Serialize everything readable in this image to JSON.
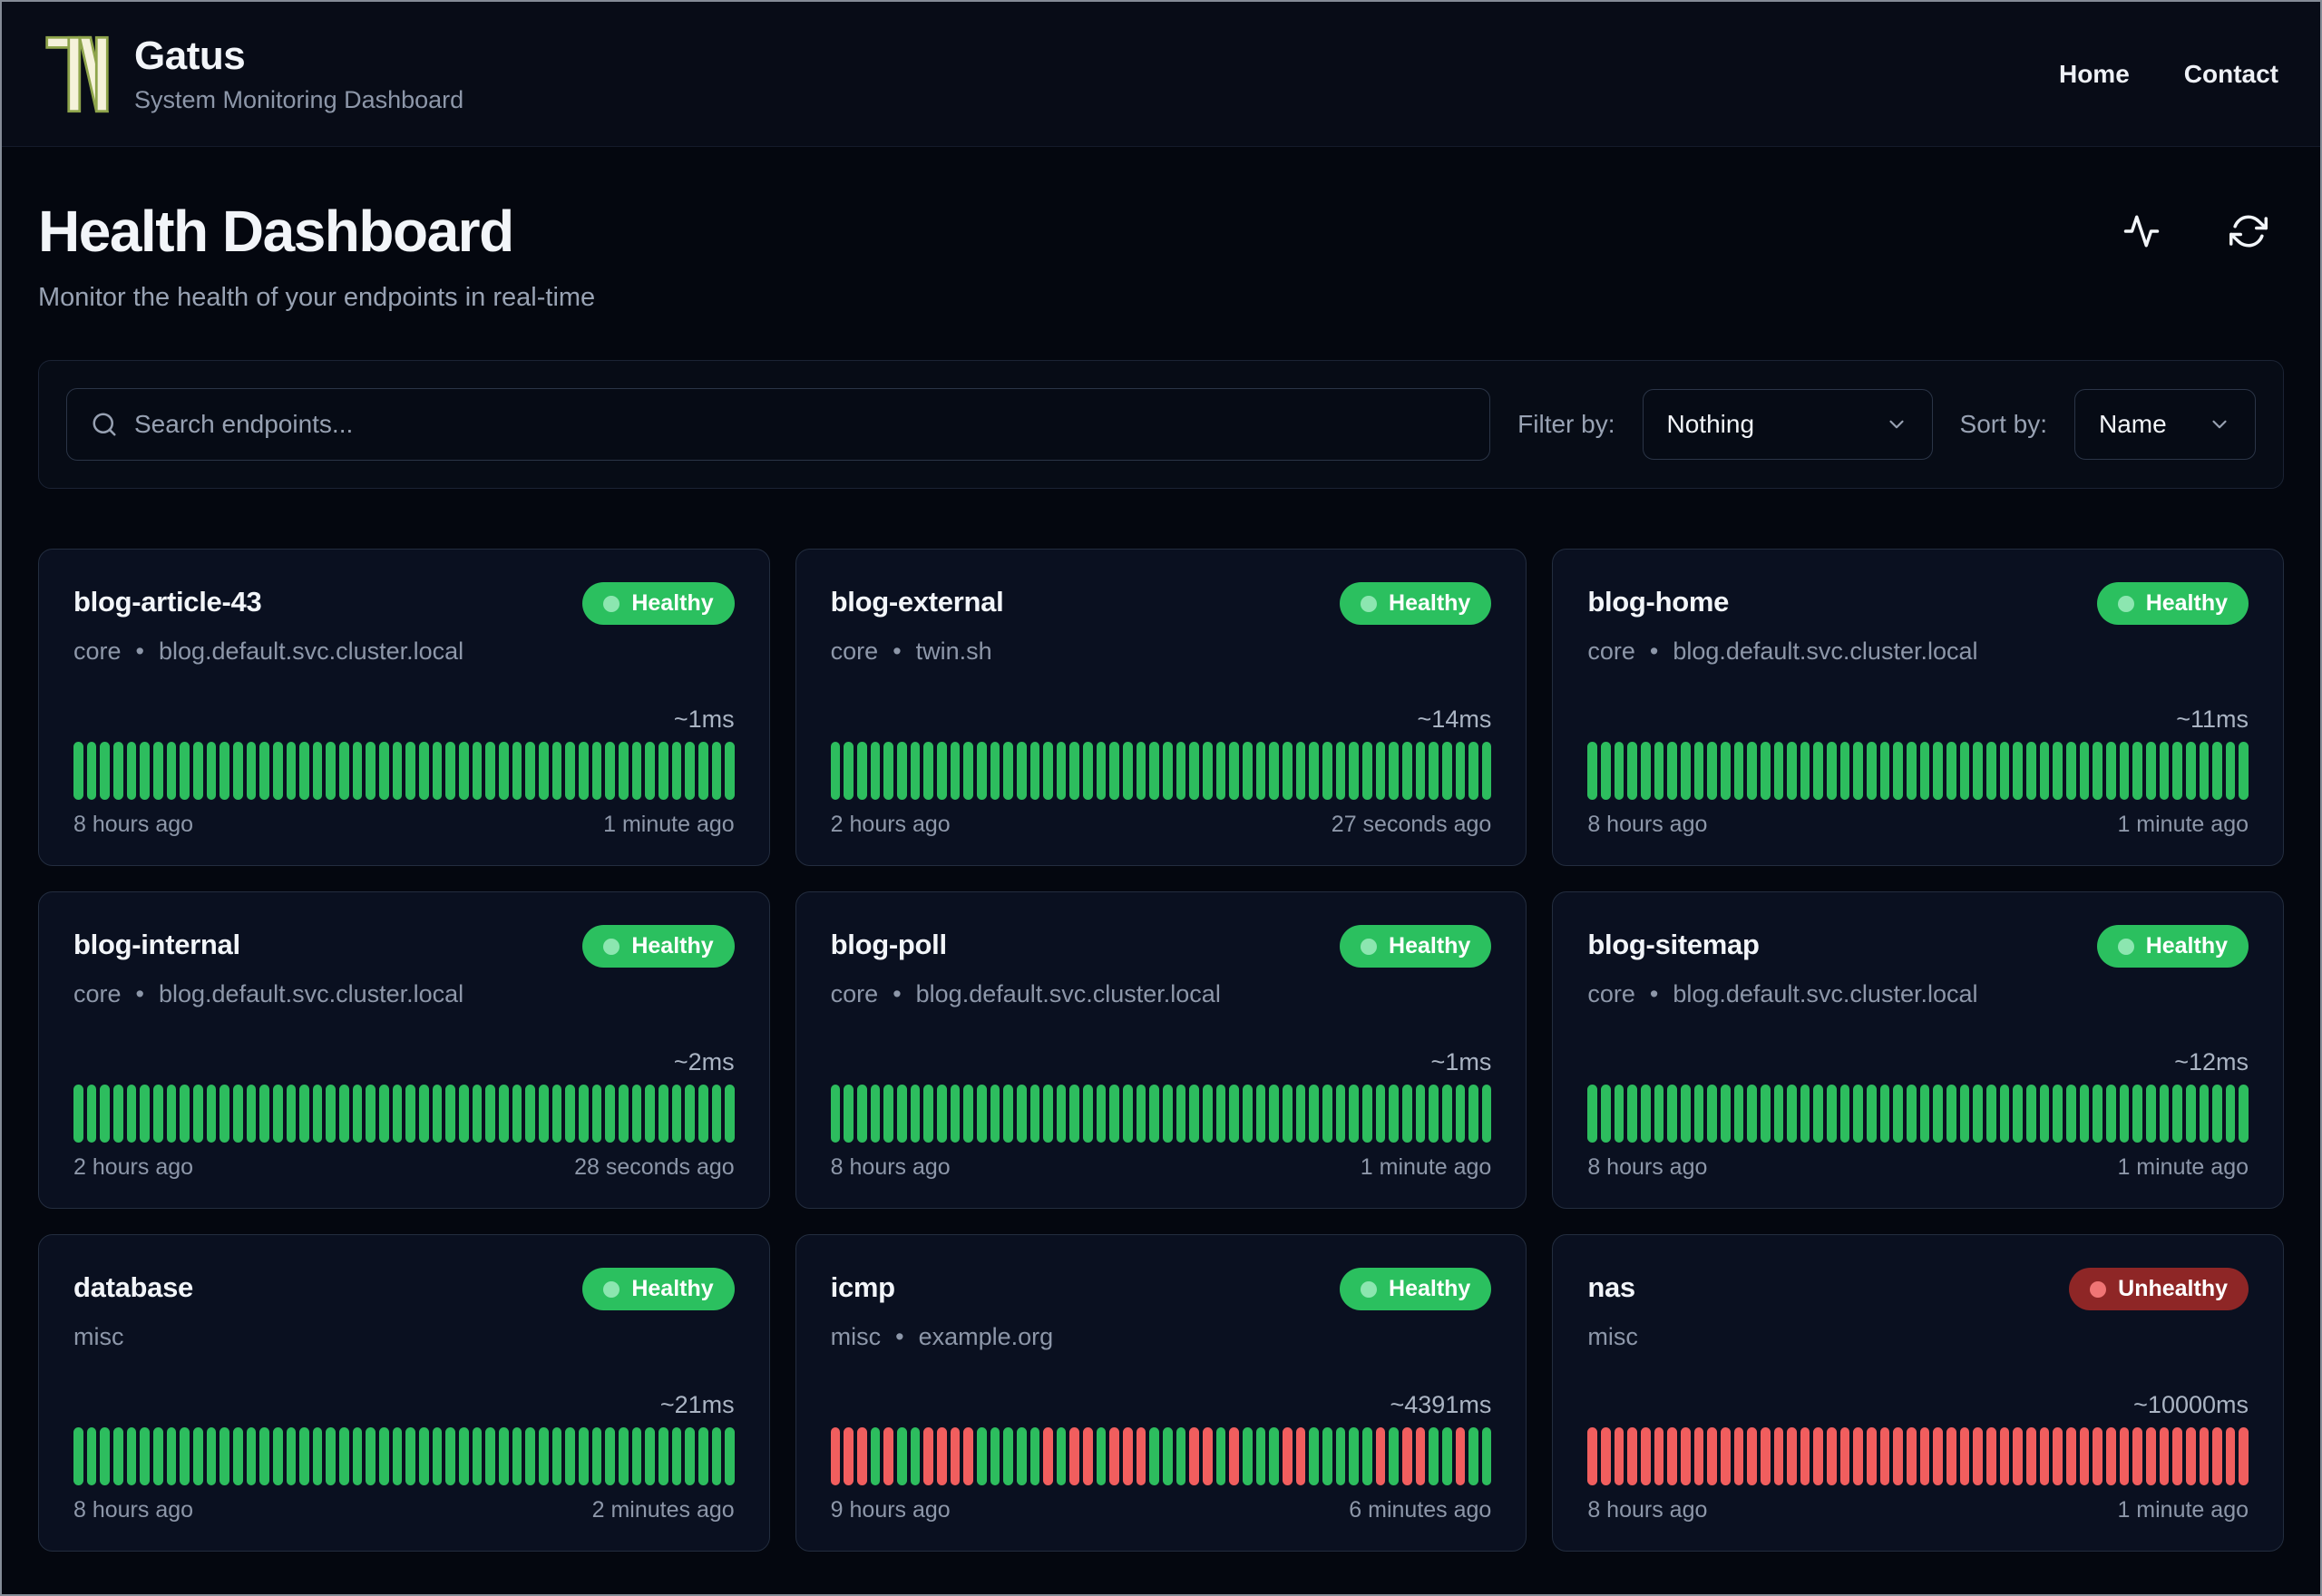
{
  "header": {
    "brand": "Gatus",
    "tagline": "System Monitoring Dashboard",
    "nav": [
      {
        "label": "Home"
      },
      {
        "label": "Contact"
      }
    ]
  },
  "page": {
    "title": "Health Dashboard",
    "subtitle": "Monitor the health of your endpoints in real-time"
  },
  "toolbar": {
    "search_placeholder": "Search endpoints...",
    "filter_label": "Filter by:",
    "filter_value": "Nothing",
    "sort_label": "Sort by:",
    "sort_value": "Name"
  },
  "ui": {
    "separator": "•",
    "icons": [
      "tn-logo-icon",
      "activity-icon",
      "refresh-icon",
      "search-icon",
      "chevron-down-icon"
    ],
    "colors": {
      "healthy_badge": "#2bc05f",
      "healthy_bar": "#2dbd5e",
      "unhealthy_badge": "#8e2626",
      "unhealthy_bar": "#f15e5e",
      "background": "#04070f",
      "card_background": "#0a1020",
      "logo_green": "#8ea44b"
    }
  },
  "cards": [
    {
      "name": "blog-article-43",
      "group": "core",
      "host": "blog.default.svc.cluster.local",
      "status": "healthy",
      "status_label": "Healthy",
      "latency": "~1ms",
      "start_label": "8 hours ago",
      "end_label": "1 minute ago",
      "bars": "GGGGGGGGGGGGGGGGGGGGGGGGGGGGGGGGGGGGGGGGGGGGGGGGGG"
    },
    {
      "name": "blog-external",
      "group": "core",
      "host": "twin.sh",
      "status": "healthy",
      "status_label": "Healthy",
      "latency": "~14ms",
      "start_label": "2 hours ago",
      "end_label": "27 seconds ago",
      "bars": "GGGGGGGGGGGGGGGGGGGGGGGGGGGGGGGGGGGGGGGGGGGGGGGGGG"
    },
    {
      "name": "blog-home",
      "group": "core",
      "host": "blog.default.svc.cluster.local",
      "status": "healthy",
      "status_label": "Healthy",
      "latency": "~11ms",
      "start_label": "8 hours ago",
      "end_label": "1 minute ago",
      "bars": "GGGGGGGGGGGGGGGGGGGGGGGGGGGGGGGGGGGGGGGGGGGGGGGGGG"
    },
    {
      "name": "blog-internal",
      "group": "core",
      "host": "blog.default.svc.cluster.local",
      "status": "healthy",
      "status_label": "Healthy",
      "latency": "~2ms",
      "start_label": "2 hours ago",
      "end_label": "28 seconds ago",
      "bars": "GGGGGGGGGGGGGGGGGGGGGGGGGGGGGGGGGGGGGGGGGGGGGGGGGG"
    },
    {
      "name": "blog-poll",
      "group": "core",
      "host": "blog.default.svc.cluster.local",
      "status": "healthy",
      "status_label": "Healthy",
      "latency": "~1ms",
      "start_label": "8 hours ago",
      "end_label": "1 minute ago",
      "bars": "GGGGGGGGGGGGGGGGGGGGGGGGGGGGGGGGGGGGGGGGGGGGGGGGGG"
    },
    {
      "name": "blog-sitemap",
      "group": "core",
      "host": "blog.default.svc.cluster.local",
      "status": "healthy",
      "status_label": "Healthy",
      "latency": "~12ms",
      "start_label": "8 hours ago",
      "end_label": "1 minute ago",
      "bars": "GGGGGGGGGGGGGGGGGGGGGGGGGGGGGGGGGGGGGGGGGGGGGGGGGG"
    },
    {
      "name": "database",
      "group": "misc",
      "host": "",
      "status": "healthy",
      "status_label": "Healthy",
      "latency": "~21ms",
      "start_label": "8 hours ago",
      "end_label": "2 minutes ago",
      "bars": "GGGGGGGGGGGGGGGGGGGGGGGGGGGGGGGGGGGGGGGGGGGGGGGGGG"
    },
    {
      "name": "icmp",
      "group": "misc",
      "host": "example.org",
      "status": "healthy",
      "status_label": "Healthy",
      "latency": "~4391ms",
      "start_label": "9 hours ago",
      "end_label": "6 minutes ago",
      "bars": "RRRGRGGRRRRGGGGGRGRRGRRRGGGRRGRGGGRRGGGGGRGRRGGRGG"
    },
    {
      "name": "nas",
      "group": "misc",
      "host": "",
      "status": "unhealthy",
      "status_label": "Unhealthy",
      "latency": "~10000ms",
      "start_label": "8 hours ago",
      "end_label": "1 minute ago",
      "bars": "RRRRRRRRRRRRRRRRRRRRRRRRRRRRRRRRRRRRRRRRRRRRRRRRRR"
    }
  ]
}
